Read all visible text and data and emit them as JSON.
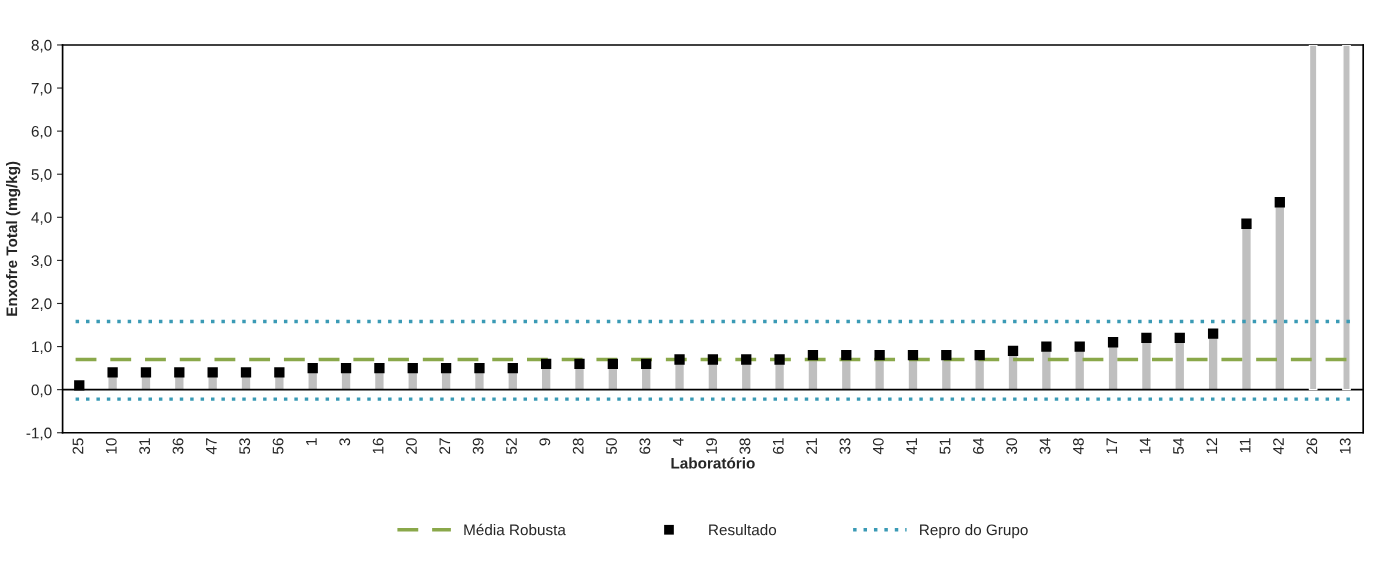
{
  "chart_data": {
    "type": "bar",
    "xlabel": "Laboratório",
    "ylabel": "Enxofre Total (mg/kg)",
    "categories": [
      "25",
      "10",
      "31",
      "36",
      "47",
      "53",
      "56",
      "1",
      "3",
      "16",
      "20",
      "27",
      "39",
      "52",
      "9",
      "28",
      "50",
      "63",
      "4",
      "19",
      "38",
      "61",
      "21",
      "33",
      "40",
      "41",
      "51",
      "64",
      "30",
      "34",
      "48",
      "17",
      "14",
      "54",
      "12",
      "11",
      "42",
      "26",
      "13"
    ],
    "series": [
      {
        "color": "#c0c0c0",
        "values": [
          null,
          null,
          null,
          null,
          null,
          null,
          null,
          null,
          null,
          null,
          null,
          null,
          null,
          null,
          null,
          null,
          null,
          null,
          null,
          null,
          null,
          null,
          null,
          null,
          null,
          null,
          null,
          null,
          null,
          null,
          null,
          null,
          null,
          null,
          null,
          null,
          null,
          8.0,
          8.0
        ]
      },
      {
        "type": "lollipop",
        "name": "Resultado",
        "color": "#000000",
        "marker": "square",
        "values": [
          0.1,
          0.4,
          0.4,
          0.4,
          0.4,
          0.4,
          0.4,
          0.5,
          0.5,
          0.5,
          0.5,
          0.5,
          0.5,
          0.5,
          0.6,
          0.6,
          0.6,
          0.6,
          0.7,
          0.7,
          0.7,
          0.7,
          0.8,
          0.8,
          0.8,
          0.8,
          0.8,
          0.8,
          0.9,
          1.0,
          1.0,
          1.1,
          1.2,
          1.2,
          1.3,
          3.85,
          4.35,
          null,
          null
        ]
      }
    ],
    "ylim": [
      -1,
      8
    ],
    "yticks": [
      {
        "value": -1,
        "label": "-1,0"
      },
      {
        "value": 0,
        "label": "0,0"
      },
      {
        "value": 1,
        "label": "1,0"
      },
      {
        "value": 2,
        "label": "2,0"
      },
      {
        "value": 3,
        "label": "3,0"
      },
      {
        "value": 4,
        "label": "4,0"
      },
      {
        "value": 5,
        "label": "5,0"
      },
      {
        "value": 6,
        "label": "6,0"
      },
      {
        "value": 7,
        "label": "7,0"
      },
      {
        "value": 8,
        "label": "8,0"
      }
    ],
    "ref_lines": [
      {
        "axis": "y",
        "value": 0,
        "color": "#000000",
        "line_style": "solid"
      },
      {
        "axis": "y",
        "value": 0.7,
        "label": "Média Robusta",
        "color": "#8aa84a",
        "line_style": "dashed"
      },
      {
        "axis": "y",
        "value": 1.58,
        "label": "Repro do Grupo",
        "color": "#3a9ab5",
        "line_style": "dotted"
      },
      {
        "axis": "y",
        "value": -0.22,
        "color": "#3a9ab5",
        "line_style": "dotted"
      }
    ],
    "grid": false,
    "legend": "bottom"
  }
}
